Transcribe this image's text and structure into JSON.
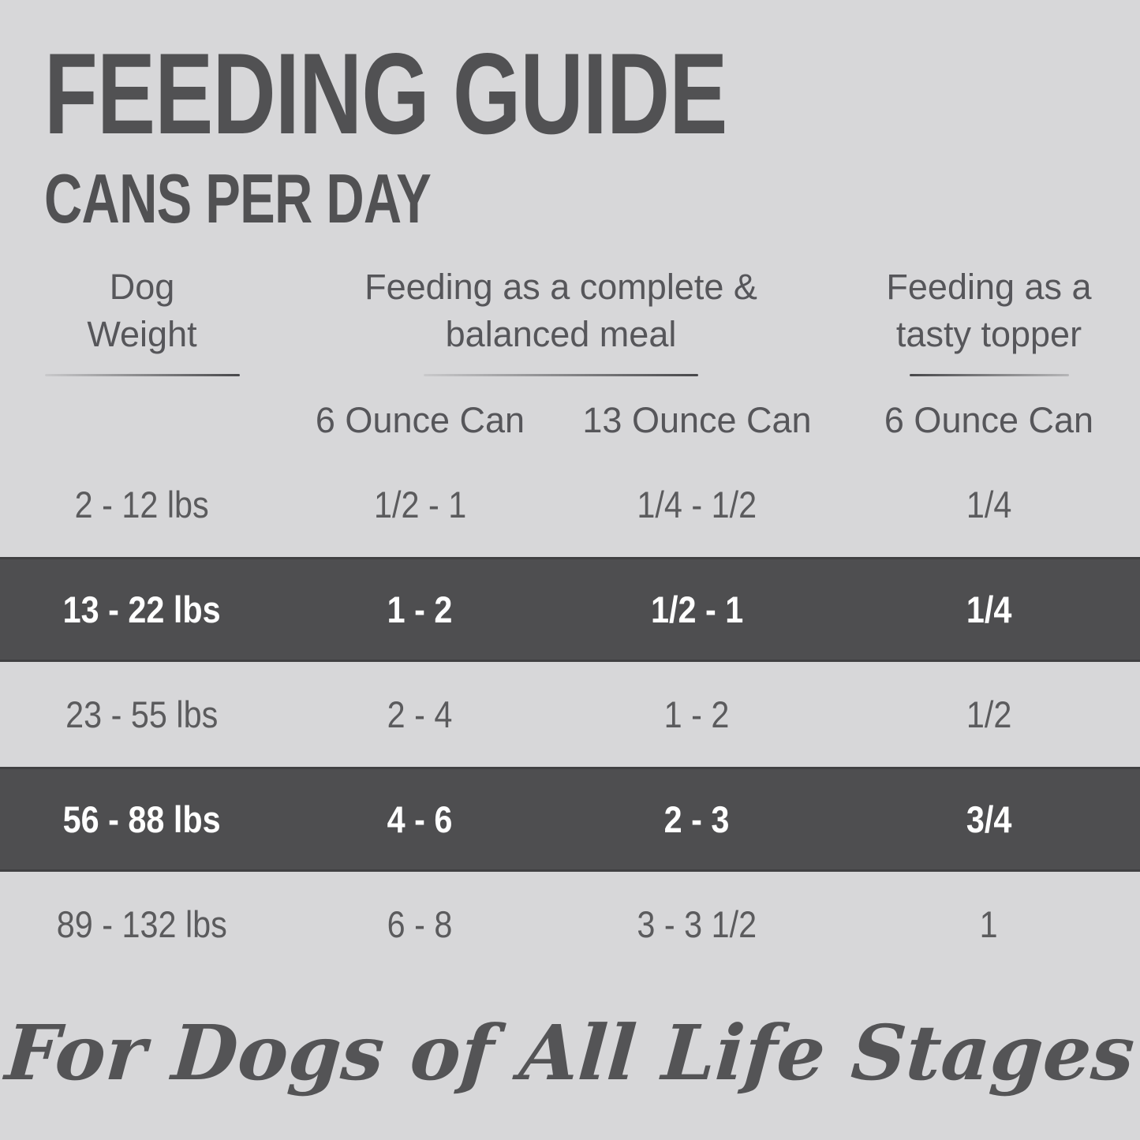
{
  "colors": {
    "background": "#d7d7d9",
    "highlight_band": "#4e4e50",
    "text": "#58585a",
    "band_text": "#ffffff"
  },
  "header": {
    "title": "FEEDING GUIDE",
    "subtitle": "CANS PER DAY"
  },
  "table": {
    "groups": [
      {
        "label": "Dog Weight"
      },
      {
        "label": "Feeding as a complete & balanced meal"
      },
      {
        "label": "Feeding as a tasty topper"
      }
    ],
    "subheaders": [
      "6 Ounce Can",
      "13 Ounce Can",
      "6 Ounce Can"
    ],
    "rows": [
      {
        "cells": [
          "2 - 12 lbs",
          "1/2 - 1",
          "1/4 - 1/2",
          "1/4"
        ],
        "highlight": false
      },
      {
        "cells": [
          "13 - 22 lbs",
          "1 - 2",
          "1/2 - 1",
          "1/4"
        ],
        "highlight": true
      },
      {
        "cells": [
          "23 - 55 lbs",
          "2 - 4",
          "1 - 2",
          "1/2"
        ],
        "highlight": false
      },
      {
        "cells": [
          "56 - 88 lbs",
          "4 - 6",
          "2 - 3",
          "3/4"
        ],
        "highlight": true
      },
      {
        "cells": [
          "89 - 132 lbs",
          "6 - 8",
          "3 - 3 1/2",
          "1"
        ],
        "highlight": false
      }
    ]
  },
  "footer": {
    "tagline": "For Dogs of All Life Stages"
  },
  "chart_data": {
    "type": "table",
    "title": "FEEDING GUIDE — CANS PER DAY",
    "columns": [
      "Dog Weight",
      "Feeding as a complete & balanced meal — 6 Ounce Can",
      "Feeding as a complete & balanced meal — 13 Ounce Can",
      "Feeding as a tasty topper — 6 Ounce Can"
    ],
    "rows": [
      [
        "2 - 12 lbs",
        "1/2 - 1",
        "1/4 - 1/2",
        "1/4"
      ],
      [
        "13 - 22 lbs",
        "1 - 2",
        "1/2 - 1",
        "1/4"
      ],
      [
        "23 - 55 lbs",
        "2 - 4",
        "1 - 2",
        "1/2"
      ],
      [
        "56 - 88 lbs",
        "4 - 6",
        "2 - 3",
        "3/4"
      ],
      [
        "89 - 132 lbs",
        "6 - 8",
        "3 - 3 1/2",
        "1"
      ]
    ],
    "highlighted_row_indices": [
      1,
      3
    ],
    "footnote": "For Dogs of All Life Stages"
  }
}
